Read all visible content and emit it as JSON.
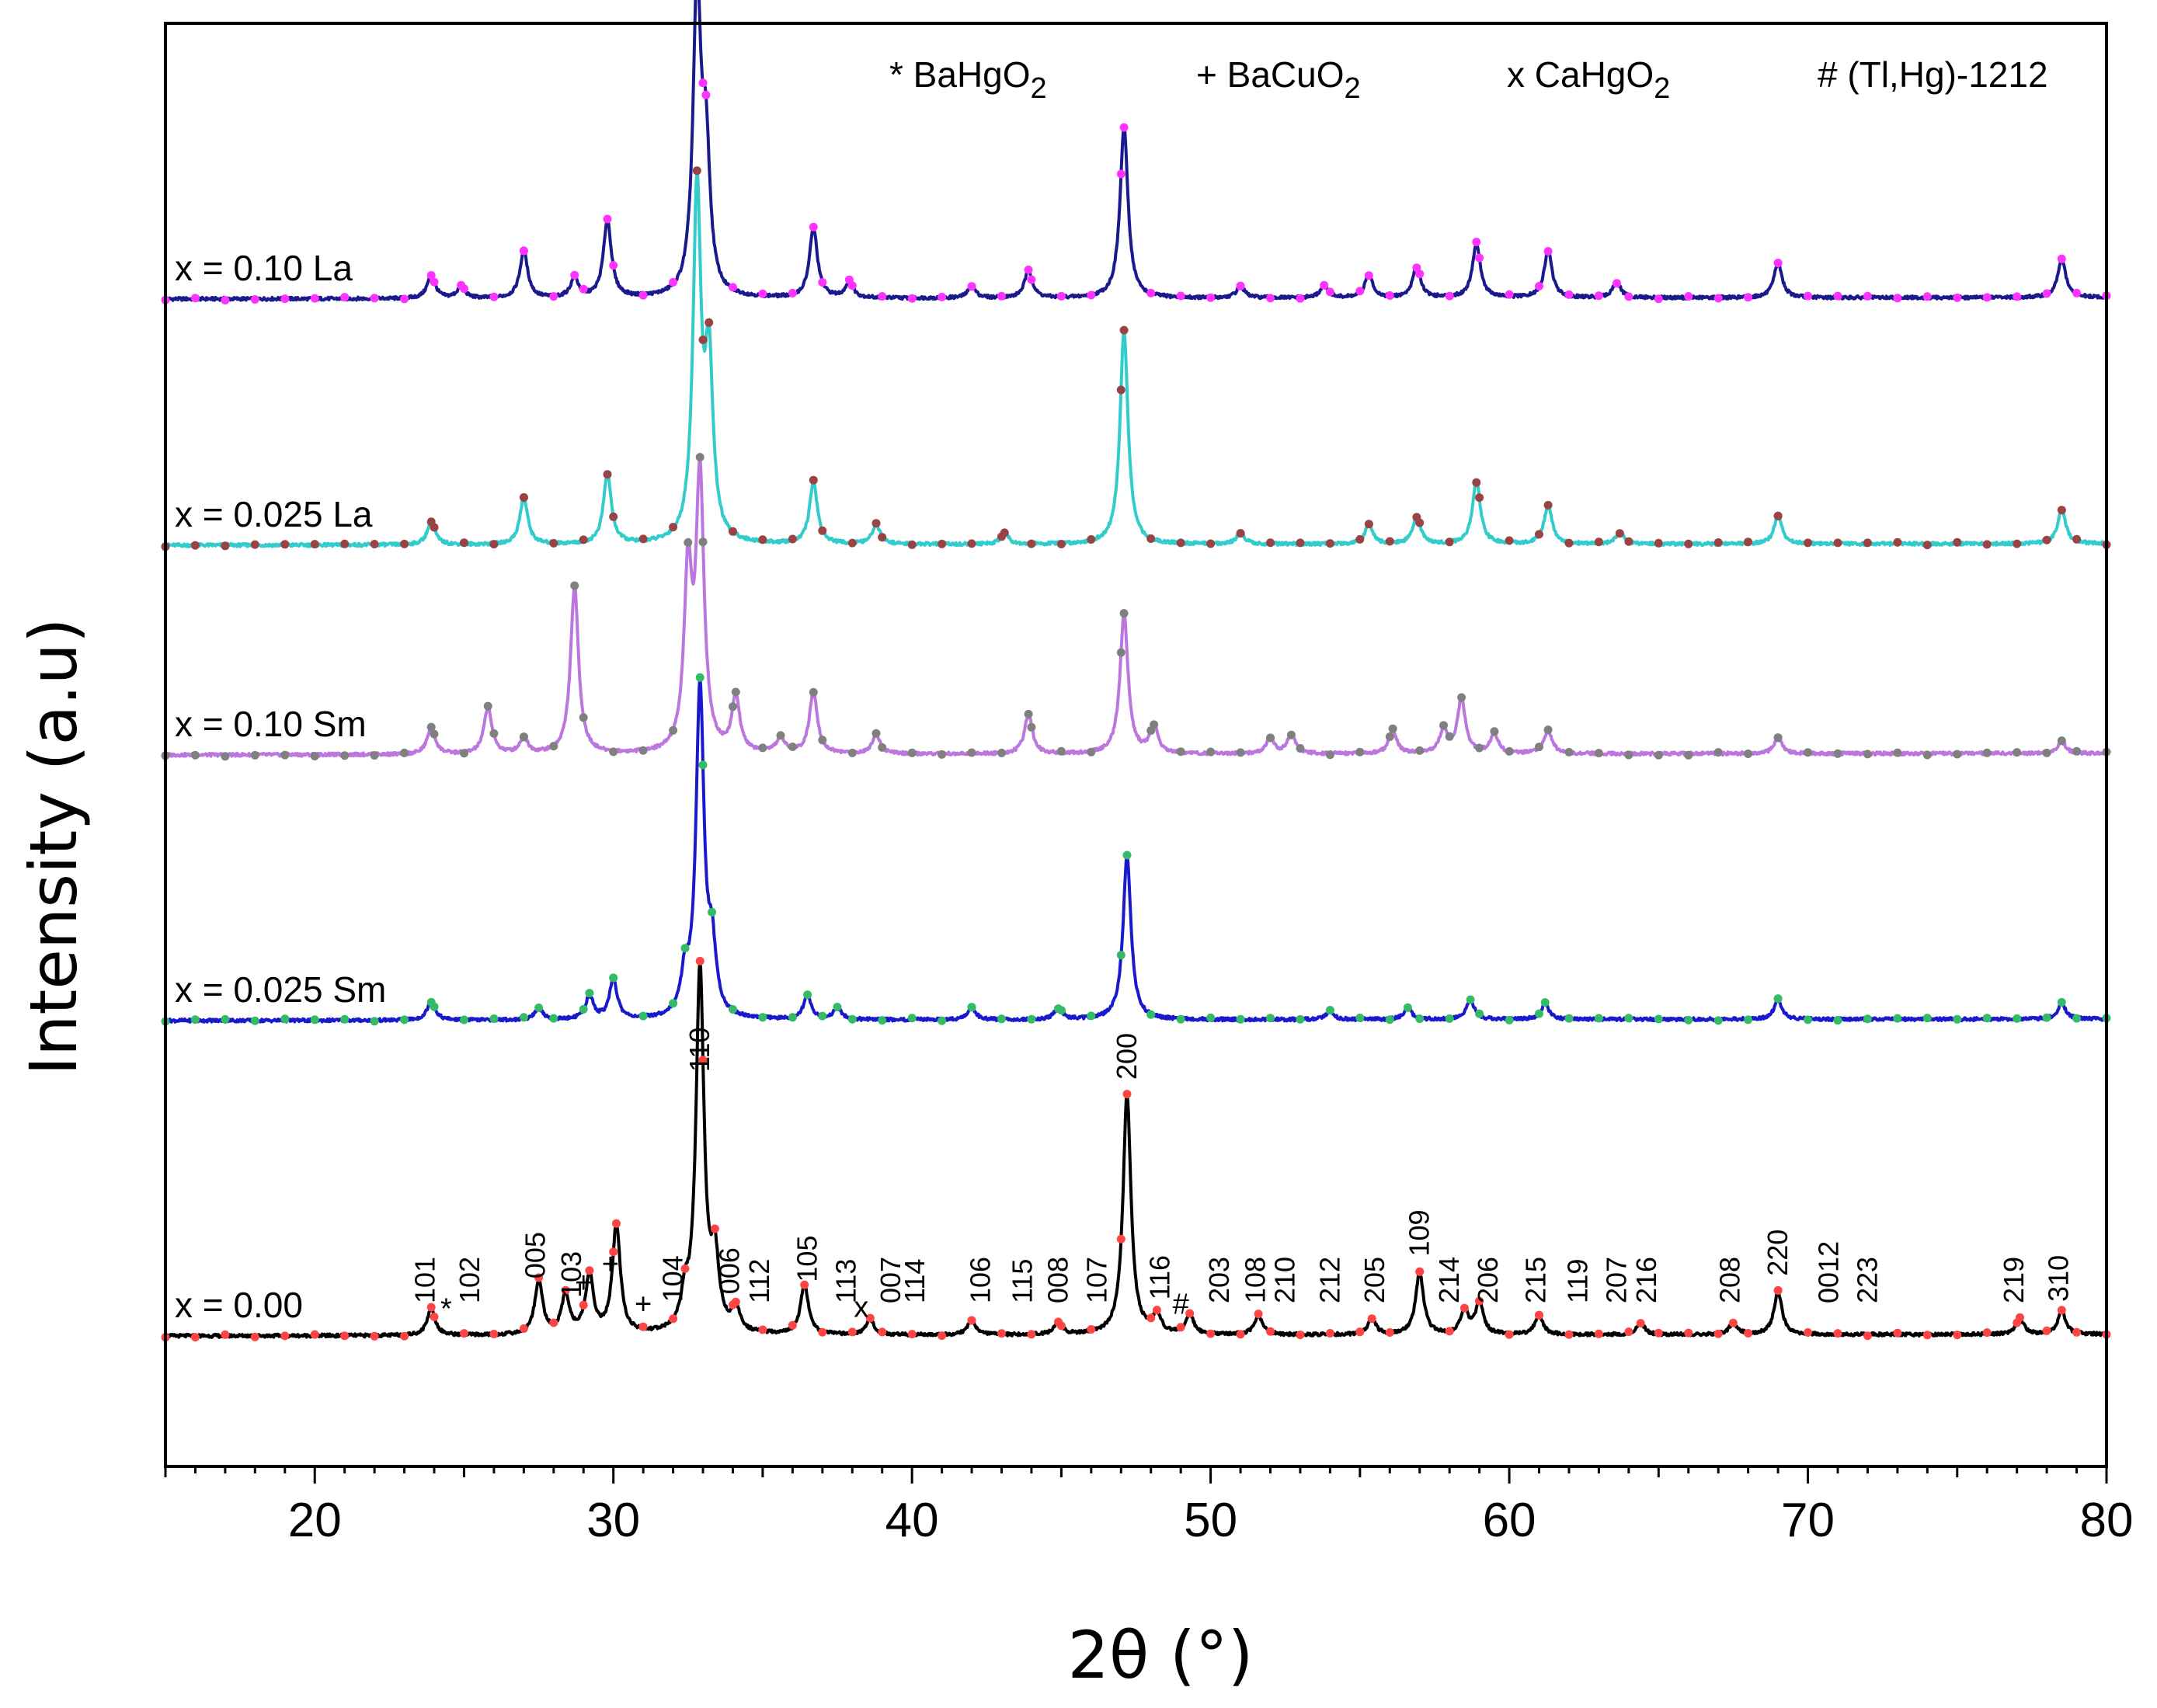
{
  "chart_data": {
    "type": "line",
    "title": "",
    "xlabel": "2θ (°)",
    "ylabel": "Intensity (a.u)",
    "xlim": [
      15,
      80
    ],
    "xticks": [
      20,
      30,
      40,
      50,
      60,
      70,
      80
    ],
    "yticks": [],
    "grid": false,
    "legend": {
      "placement": "top",
      "entries": [
        {
          "symbol": "*",
          "label": "BaHgO",
          "sub": "2"
        },
        {
          "symbol": "+",
          "label": "BaCuO",
          "sub": "2"
        },
        {
          "symbol": "x",
          "label": "CaHgO",
          "sub": "2"
        },
        {
          "symbol": "#",
          "label": "(Tl,Hg)-1212",
          "sub": ""
        }
      ]
    },
    "series": [
      {
        "name": "x = 0.10 La",
        "line_color": "#1a1a8c",
        "marker_color": "#ff33ff",
        "offset": 4,
        "peaks": [
          [
            23.9,
            0.06
          ],
          [
            24.9,
            0.03
          ],
          [
            27.0,
            0.12
          ],
          [
            28.7,
            0.05
          ],
          [
            29.8,
            0.2
          ],
          [
            32.8,
            0.78
          ],
          [
            33.1,
            0.35
          ],
          [
            36.7,
            0.18
          ],
          [
            37.9,
            0.04
          ],
          [
            42.0,
            0.03
          ],
          [
            43.9,
            0.07
          ],
          [
            47.1,
            0.44
          ],
          [
            51.0,
            0.03
          ],
          [
            53.8,
            0.03
          ],
          [
            55.3,
            0.06
          ],
          [
            56.9,
            0.08
          ],
          [
            58.9,
            0.14
          ],
          [
            61.3,
            0.12
          ],
          [
            63.6,
            0.04
          ],
          [
            69.0,
            0.09
          ],
          [
            78.5,
            0.1
          ]
        ]
      },
      {
        "name": "x = 0.025 La",
        "line_color": "#33cccc",
        "marker_color": "#994444",
        "offset": 3,
        "peaks": [
          [
            23.9,
            0.06
          ],
          [
            27.0,
            0.12
          ],
          [
            29.8,
            0.18
          ],
          [
            32.8,
            0.9
          ],
          [
            33.2,
            0.45
          ],
          [
            36.7,
            0.16
          ],
          [
            38.8,
            0.05
          ],
          [
            43.1,
            0.03
          ],
          [
            47.1,
            0.55
          ],
          [
            51.0,
            0.03
          ],
          [
            55.3,
            0.05
          ],
          [
            56.9,
            0.07
          ],
          [
            58.9,
            0.16
          ],
          [
            61.3,
            0.1
          ],
          [
            63.7,
            0.03
          ],
          [
            69.0,
            0.07
          ],
          [
            78.5,
            0.09
          ]
        ]
      },
      {
        "name": "x = 0.10 Sm",
        "line_color": "#bb77dd",
        "marker_color": "#808080",
        "offset": 2,
        "peaks": [
          [
            23.9,
            0.07
          ],
          [
            25.8,
            0.12
          ],
          [
            27.0,
            0.04
          ],
          [
            28.7,
            0.43
          ],
          [
            32.5,
            0.45
          ],
          [
            32.9,
            0.7
          ],
          [
            34.1,
            0.14
          ],
          [
            35.6,
            0.04
          ],
          [
            36.7,
            0.16
          ],
          [
            38.8,
            0.05
          ],
          [
            43.9,
            0.1
          ],
          [
            47.1,
            0.36
          ],
          [
            48.1,
            0.07
          ],
          [
            52.0,
            0.04
          ],
          [
            52.7,
            0.05
          ],
          [
            56.1,
            0.06
          ],
          [
            57.8,
            0.06
          ],
          [
            58.4,
            0.14
          ],
          [
            59.5,
            0.05
          ],
          [
            61.3,
            0.06
          ],
          [
            69.0,
            0.04
          ],
          [
            78.5,
            0.03
          ]
        ]
      },
      {
        "name": "x = 0.025 Sm",
        "line_color": "#1a1acc",
        "marker_color": "#33bb66",
        "offset": 1,
        "peaks": [
          [
            23.9,
            0.05
          ],
          [
            27.5,
            0.03
          ],
          [
            29.2,
            0.06
          ],
          [
            30.0,
            0.1
          ],
          [
            32.4,
            0.1
          ],
          [
            32.9,
            0.85
          ],
          [
            33.3,
            0.16
          ],
          [
            36.5,
            0.06
          ],
          [
            37.5,
            0.03
          ],
          [
            42.0,
            0.03
          ],
          [
            44.9,
            0.03
          ],
          [
            47.2,
            0.42
          ],
          [
            54.0,
            0.02
          ],
          [
            56.6,
            0.03
          ],
          [
            58.7,
            0.05
          ],
          [
            61.2,
            0.04
          ],
          [
            69.0,
            0.05
          ],
          [
            78.5,
            0.04
          ]
        ]
      },
      {
        "name": "x = 0.00",
        "line_color": "#000000",
        "marker_color": "#ff4444",
        "offset": 0,
        "peaks": [
          [
            23.9,
            0.07
          ],
          [
            27.5,
            0.14
          ],
          [
            28.4,
            0.1
          ],
          [
            29.2,
            0.15
          ],
          [
            30.1,
            0.28
          ],
          [
            32.4,
            0.08
          ],
          [
            32.9,
            0.94
          ],
          [
            33.4,
            0.18
          ],
          [
            34.1,
            0.06
          ],
          [
            36.4,
            0.13
          ],
          [
            38.6,
            0.04
          ],
          [
            42.0,
            0.04
          ],
          [
            44.9,
            0.03
          ],
          [
            47.2,
            0.62
          ],
          [
            48.2,
            0.05
          ],
          [
            49.3,
            0.05
          ],
          [
            51.6,
            0.05
          ],
          [
            55.4,
            0.04
          ],
          [
            57.0,
            0.16
          ],
          [
            58.5,
            0.06
          ],
          [
            59.0,
            0.08
          ],
          [
            61.0,
            0.05
          ],
          [
            64.4,
            0.03
          ],
          [
            67.5,
            0.03
          ],
          [
            69.0,
            0.11
          ],
          [
            77.1,
            0.04
          ],
          [
            78.5,
            0.06
          ]
        ]
      }
    ],
    "peak_annotations": [
      {
        "label": "101",
        "x": 23.7
      },
      {
        "label": "102",
        "x": 25.2
      },
      {
        "label": "005",
        "x": 27.4
      },
      {
        "label": "103",
        "x": 28.6
      },
      {
        "label": "104",
        "x": 32.0
      },
      {
        "label": "110",
        "x": 32.9
      },
      {
        "label": "006",
        "x": 33.9
      },
      {
        "label": "112",
        "x": 34.9
      },
      {
        "label": "105",
        "x": 36.5
      },
      {
        "label": "113",
        "x": 37.8
      },
      {
        "label": "007",
        "x": 39.3
      },
      {
        "label": "114",
        "x": 40.1
      },
      {
        "label": "106",
        "x": 42.3
      },
      {
        "label": "115",
        "x": 43.7
      },
      {
        "label": "008",
        "x": 44.9
      },
      {
        "label": "107",
        "x": 46.2
      },
      {
        "label": "200",
        "x": 47.2
      },
      {
        "label": "116",
        "x": 48.3
      },
      {
        "label": "203",
        "x": 50.3
      },
      {
        "label": "108",
        "x": 51.5
      },
      {
        "label": "210",
        "x": 52.5
      },
      {
        "label": "212",
        "x": 54.0
      },
      {
        "label": "205",
        "x": 55.5
      },
      {
        "label": "109",
        "x": 57.0
      },
      {
        "label": "214",
        "x": 58.0
      },
      {
        "label": "206",
        "x": 59.3
      },
      {
        "label": "215",
        "x": 60.9
      },
      {
        "label": "119",
        "x": 62.3
      },
      {
        "label": "207",
        "x": 63.6
      },
      {
        "label": "216",
        "x": 64.6
      },
      {
        "label": "208",
        "x": 67.4
      },
      {
        "label": "220",
        "x": 69.0
      },
      {
        "label": "0012",
        "x": 70.7
      },
      {
        "label": "223",
        "x": 72.0
      },
      {
        "label": "219",
        "x": 76.9
      },
      {
        "label": "310",
        "x": 78.4
      }
    ],
    "phase_markers": [
      {
        "symbol": "*",
        "x": 24.4
      },
      {
        "symbol": "+",
        "x": 29.0
      },
      {
        "symbol": "+",
        "x": 29.9
      },
      {
        "symbol": "+",
        "x": 31.0
      },
      {
        "symbol": "x",
        "x": 38.3
      },
      {
        "symbol": "#",
        "x": 49.0
      }
    ]
  }
}
